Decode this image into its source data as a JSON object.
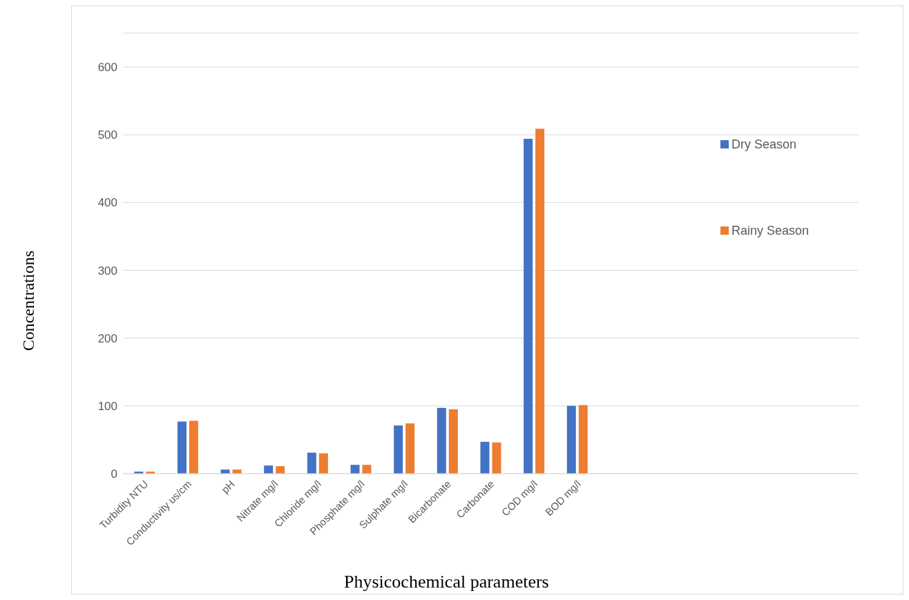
{
  "chart_data": {
    "type": "bar",
    "xlabel": "Physicochemical parameters",
    "ylabel": "Concentrations",
    "categories": [
      "Turbidity NTU",
      "Conductivity us/cm",
      "pH",
      "Nitrate   mg/l",
      "Chloride   mg/l",
      "Phosphate mg/l",
      "Sulphate   mg/l",
      "Bicarbonate",
      "Carbonate",
      "COD mg/l",
      "BOD    mg/l",
      null,
      null,
      null,
      null,
      null,
      null
    ],
    "series": [
      {
        "name": "Dry Season",
        "color": "#4472c4",
        "values": [
          3,
          77,
          6,
          12,
          31,
          13,
          71,
          97,
          47,
          494,
          100,
          null,
          null,
          null,
          null,
          null,
          null
        ]
      },
      {
        "name": "Rainy Season",
        "color": "#ed7d31",
        "values": [
          3,
          78,
          6,
          11,
          30,
          13,
          74,
          95,
          46,
          509,
          101,
          null,
          null,
          null,
          null,
          null,
          null
        ]
      }
    ],
    "ylim": [
      0,
      650
    ],
    "yticks": [
      0,
      100,
      200,
      300,
      400,
      500,
      600
    ],
    "grid": "y",
    "legend": "right"
  }
}
